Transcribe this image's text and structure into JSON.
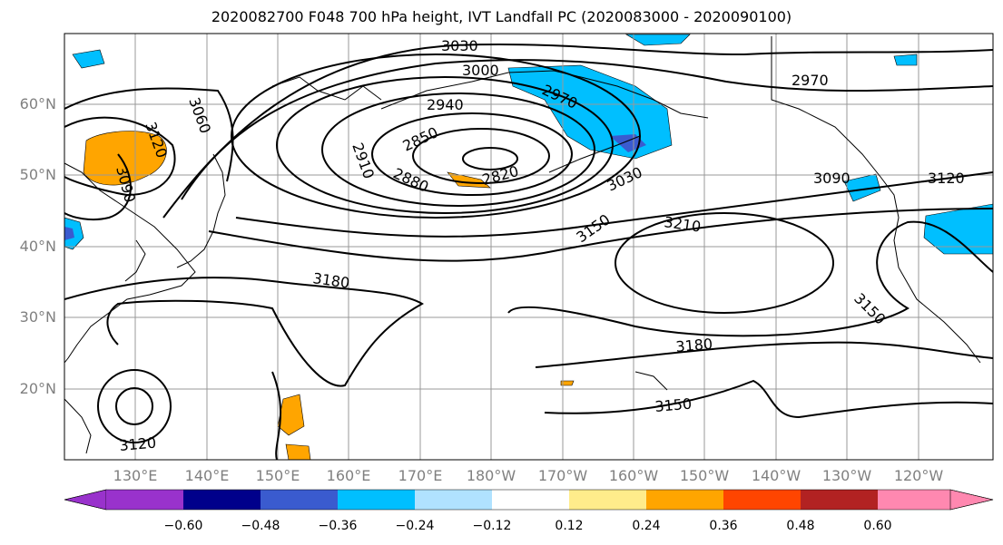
{
  "title": "2020082700 F048 700 hPa height, IVT Landfall PC (2020083000 - 2020090100)",
  "map": {
    "lat_labels": [
      "60°N",
      "50°N",
      "40°N",
      "30°N",
      "20°N"
    ],
    "lon_labels": [
      "130°E",
      "140°E",
      "150°E",
      "160°E",
      "170°E",
      "180°W",
      "170°W",
      "160°W",
      "150°W",
      "140°W",
      "130°W",
      "120°W"
    ],
    "contour_labels": [
      "3030",
      "3000",
      "2970",
      "2940",
      "2850",
      "2910",
      "2880",
      "2820",
      "3060",
      "3120",
      "3090",
      "3030",
      "2970",
      "3090",
      "3120",
      "3150",
      "3210",
      "3180",
      "3150",
      "3180",
      "3150",
      "3120"
    ]
  },
  "colorbar": {
    "ticks": [
      "−0.60",
      "−0.48",
      "−0.36",
      "−0.24",
      "−0.12",
      "0.12",
      "0.24",
      "0.36",
      "0.48",
      "0.60"
    ],
    "colors": [
      "#9932cc",
      "#00008b",
      "#3a5bcf",
      "#00bfff",
      "#b0e2ff",
      "#ffffff",
      "#ffec8b",
      "#ffa500",
      "#ff4500",
      "#b22222",
      "#ff88b0"
    ]
  }
}
